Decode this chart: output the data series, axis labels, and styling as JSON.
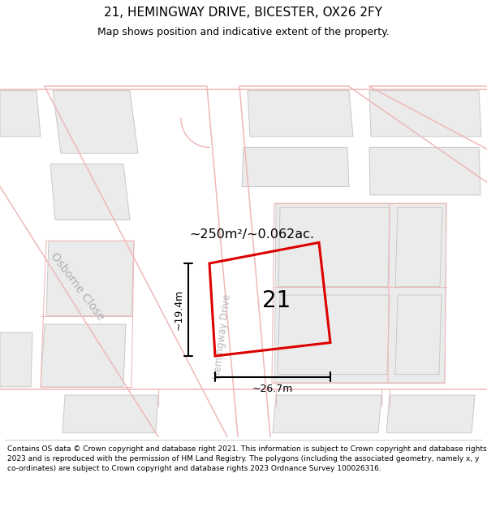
{
  "title": "21, HEMINGWAY DRIVE, BICESTER, OX26 2FY",
  "subtitle": "Map shows position and indicative extent of the property.",
  "footer": "Contains OS data © Crown copyright and database right 2021. This information is subject to Crown copyright and database rights 2023 and is reproduced with the permission of HM Land Registry. The polygons (including the associated geometry, namely x, y co-ordinates) are subject to Crown copyright and database rights 2023 Ordnance Survey 100026316.",
  "map_bg": "#ffffff",
  "building_fill": "#ebebeb",
  "building_edge": "#c8c8c8",
  "road_fill": "#ffffff",
  "road_stroke": "#f0b8b8",
  "street_label_osborne": "Osborne Close",
  "street_label_hemingway": "Hemingway Drive",
  "plot_label": "21",
  "area_label": "~250m²/~0.062ac.",
  "width_label": "~26.7m",
  "height_label": "~19.4m",
  "plot_color": "#dd0000",
  "plot_lw": 2.0,
  "dim_color": "#000000",
  "title_fontsize": 11,
  "subtitle_fontsize": 9,
  "footer_fontsize": 6.5
}
